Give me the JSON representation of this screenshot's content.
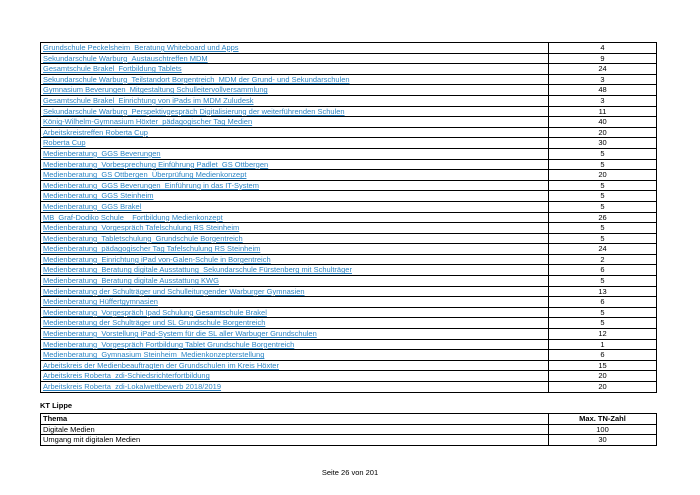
{
  "colors": {
    "link": "#2E86C5",
    "border": "#000000",
    "text": "#000000",
    "page_bg": "#ffffff"
  },
  "events_table": {
    "rows": [
      {
        "label": "Grundschule Peckelsheim_Beratung Whiteboard und Apps",
        "value": "4"
      },
      {
        "label": "Sekundarschule Warburg_Austauschtreffen MDM",
        "value": "9"
      },
      {
        "label": "Gesamtschule Brakel_Fortbildung Tablets",
        "value": "24"
      },
      {
        "label": "Sekundarschule Warburg_Teilstandort Borgentreich_MDM der Grund- und Sekundarschulen",
        "value": "3"
      },
      {
        "label": "Gymnasium Beverungen_Mitgestaltung Schulleitervollversammlung",
        "value": "48"
      },
      {
        "label": "Gesamtschule Brakel_Einrichtung von iPads im MDM Zuludesk",
        "value": "3"
      },
      {
        "label": "Sekundarschule Warburg_Perspektivgespräch Digitalisierung der weiterführenden Schulen",
        "value": "11"
      },
      {
        "label": "König-Wilhelm-Gymnasium Höxter_pädagogischer Tag Medien",
        "value": "40"
      },
      {
        "label": "Arbeitskreistreffen Roberta Cup",
        "value": "20"
      },
      {
        "label": "Roberta Cup",
        "value": "30"
      },
      {
        "label": "Medienberatung_GGS Beverungen",
        "value": "5"
      },
      {
        "label": "Medienberatung_Vorbesprechung Einführung Padlet_GS Ottbergen",
        "value": "5"
      },
      {
        "label": "Medienberatung_GS Ottbergen_Überprüfung Medienkonzept",
        "value": "20"
      },
      {
        "label": "Medienberatung_GGS Beverungen_Einführung in das IT-System",
        "value": "5"
      },
      {
        "label": "Medienberatung_GGS Steinheim",
        "value": "5"
      },
      {
        "label": "Medienberatung_GGS Brakel",
        "value": "5"
      },
      {
        "label": "MB_Graf-Dodiko Schule__Fortbildung Medienkonzept",
        "value": "26"
      },
      {
        "label": "Medienberatung_Vorgespräch Tafelschulung RS Steinheim",
        "value": "5"
      },
      {
        "label": "Medienberatung_Tabletschulung_Grundschule Borgentreich",
        "value": "5"
      },
      {
        "label": "Medienberatung_pädagogischer Tag Tafelschulung RS Steinheim",
        "value": "24"
      },
      {
        "label": "Medienberatung_Einrichtung iPad von-Galen-Schule in Borgentreich",
        "value": "2"
      },
      {
        "label": "Medienberatung_Beratung digitale Ausstattung_Sekundarschule Fürstenberg mit Schulträger",
        "value": "6"
      },
      {
        "label": "Medienberatung_Beratung digitale Ausstattung KWG",
        "value": "5"
      },
      {
        "label": "Medienberatung der Schulträger und Schulleitungender Warburger Gymnasien",
        "value": "13"
      },
      {
        "label": "Medienberatung Hüffertgymnasien",
        "value": "6"
      },
      {
        "label": "Medienberatung_Vorgespräch Ipad Schulung Gesamtschule Brakel",
        "value": "5"
      },
      {
        "label": "Medienberatung der Schulträger und SL Grundschule Borgentreich",
        "value": "5"
      },
      {
        "label": "Medienberatung_Vorstellung iPad-System für die SL aller Warbuger Grundschulen",
        "value": "12"
      },
      {
        "label": "Medienberatung_Vorgespräch Fortbildung Tablet Grundschule Borgentreich",
        "value": "1"
      },
      {
        "label": "Medienberatung_Gymnasium Steinheim_Medienkonzepterstellung",
        "value": "6"
      },
      {
        "label": "Arbeitskreis der Medienbeauftragten der Grundschulen im Kreis Höxter",
        "value": "15"
      },
      {
        "label": "Arbeitskreis Roberta_zdi-Schiedsrichterfortbildung",
        "value": "20"
      },
      {
        "label": "Arbeitskreis Roberta_zdi-Lokalwettbewerb 2018/2019",
        "value": "20"
      }
    ]
  },
  "kt_lippe": {
    "heading": "KT Lippe",
    "table": {
      "headers": [
        "Thema",
        "Max. TN-Zahl"
      ],
      "rows": [
        {
          "label": "Digitale Medien",
          "value": "100"
        },
        {
          "label": "Umgang mit digitalen Medien",
          "value": "30"
        }
      ]
    }
  },
  "footer": {
    "text": "Seite 26 von 201"
  }
}
